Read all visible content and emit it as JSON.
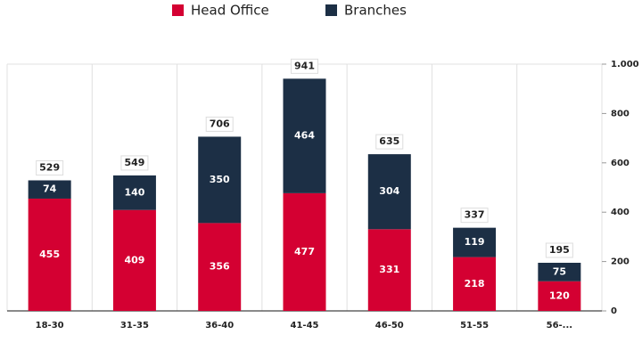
{
  "chart_data": {
    "type": "stacked_bar",
    "categories": [
      "18-30",
      "31-35",
      "36-40",
      "41-45",
      "46-50",
      "51-55",
      "56-..."
    ],
    "series": [
      {
        "name": "Head Office",
        "color": "#d40032",
        "values": [
          455,
          409,
          356,
          477,
          331,
          218,
          120
        ]
      },
      {
        "name": "Branches",
        "color": "#1c2f45",
        "values": [
          74,
          140,
          350,
          464,
          304,
          119,
          75
        ]
      }
    ],
    "totals": [
      529,
      549,
      706,
      941,
      635,
      337,
      195
    ],
    "ylim": [
      0,
      1000
    ],
    "yticks": [
      0,
      200,
      400,
      600,
      800,
      {
        "value": 1000,
        "label": "1.000"
      }
    ],
    "axis_side": "right",
    "legend": "top"
  }
}
